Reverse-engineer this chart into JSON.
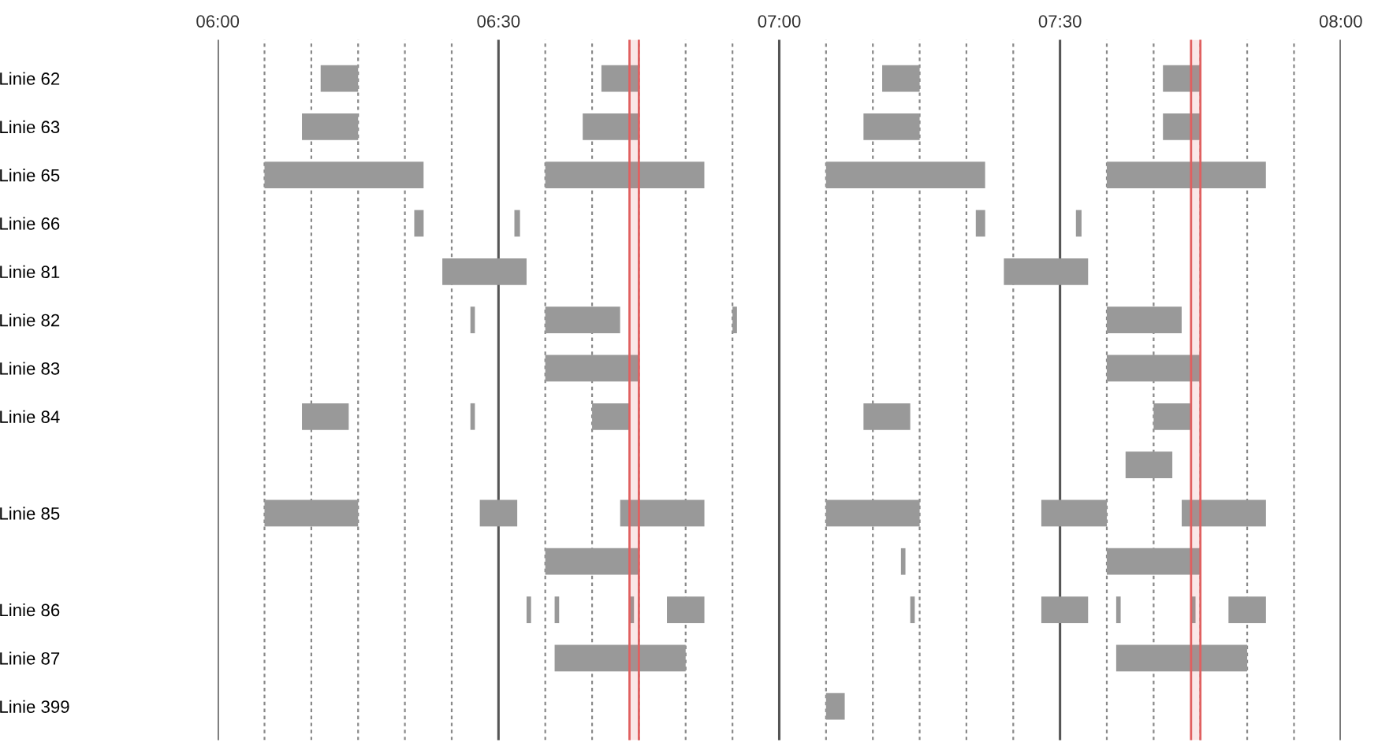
{
  "chart_data": {
    "type": "bar",
    "orientation": "horizontal",
    "categories": [
      "Linie 62",
      "Linie 63",
      "Linie 65",
      "Linie 66",
      "Linie 81",
      "Linie 82",
      "Linie 83",
      "Linie 84",
      null,
      "Linie 85",
      null,
      "Linie 86",
      "Linie 87",
      "Linie 399"
    ],
    "series": [
      {
        "color": "#999999",
        "base": [
          6.1833,
          6.15,
          6.0833,
          6.35,
          6.4,
          6.45,
          6.5833,
          6.15,
          7.6167,
          6.0833,
          6.5833,
          6.55,
          6.6,
          7.0833
        ],
        "values": [
          0.0667,
          0.1,
          0.2833,
          0.0167,
          0.15,
          0.008,
          0.1667,
          0.0833,
          0.0833,
          0.1667,
          0.1667,
          0.008,
          0.2333,
          0.0333
        ]
      },
      {
        "color": "#999999",
        "base": [
          6.6833,
          6.65,
          6.5833,
          6.5283,
          7.4,
          6.5833,
          7.5833,
          6.45,
          null,
          6.4667,
          7.2167,
          6.6,
          7.6,
          null
        ],
        "values": [
          0.0667,
          0.1,
          0.2833,
          0.01,
          0.15,
          0.1333,
          0.1667,
          0.008,
          null,
          0.0667,
          0.008,
          0.008,
          0.2333,
          null
        ]
      },
      {
        "color": "#999999",
        "base": [
          7.1833,
          7.15,
          7.0833,
          7.35,
          null,
          6.9167,
          null,
          6.6667,
          null,
          6.7167,
          7.5833,
          6.7333,
          null,
          null
        ],
        "values": [
          0.0667,
          0.1,
          0.2833,
          0.0167,
          null,
          0.008,
          null,
          0.0667,
          null,
          0.15,
          0.1667,
          0.008,
          null,
          null
        ]
      },
      {
        "color": "#999999",
        "base": [
          7.6833,
          7.6833,
          7.5833,
          7.5283,
          null,
          7.5833,
          null,
          7.15,
          null,
          7.0833,
          null,
          6.8,
          null,
          null
        ],
        "values": [
          0.0667,
          0.0667,
          0.2833,
          0.01,
          null,
          0.1333,
          null,
          0.0833,
          null,
          0.1667,
          null,
          0.0667,
          null,
          null
        ]
      },
      {
        "color": "#999999",
        "base": [
          null,
          null,
          null,
          null,
          null,
          null,
          null,
          7.6667,
          null,
          7.4667,
          null,
          7.2333,
          null,
          null
        ],
        "values": [
          null,
          null,
          null,
          null,
          null,
          null,
          null,
          0.0667,
          null,
          0.1167,
          null,
          0.008,
          null,
          null
        ]
      },
      {
        "color": "#999999",
        "base": [
          null,
          null,
          null,
          null,
          null,
          null,
          null,
          null,
          null,
          7.7167,
          null,
          7.4667,
          null,
          null
        ],
        "values": [
          null,
          null,
          null,
          null,
          null,
          null,
          null,
          null,
          null,
          0.15,
          null,
          0.0833,
          null,
          null
        ]
      },
      {
        "color": "#999999",
        "base": [
          null,
          null,
          null,
          null,
          null,
          null,
          null,
          null,
          null,
          null,
          null,
          7.6,
          null,
          null
        ],
        "values": [
          null,
          null,
          null,
          null,
          null,
          null,
          null,
          null,
          null,
          null,
          null,
          0.008,
          null,
          null
        ]
      },
      {
        "color": "#999999",
        "base": [
          null,
          null,
          null,
          null,
          null,
          null,
          null,
          null,
          null,
          null,
          null,
          7.7333,
          null,
          null
        ],
        "values": [
          null,
          null,
          null,
          null,
          null,
          null,
          null,
          null,
          null,
          null,
          null,
          0.008,
          null,
          null
        ]
      },
      {
        "color": "#999999",
        "base": [
          null,
          null,
          null,
          null,
          null,
          null,
          null,
          null,
          null,
          null,
          null,
          7.8,
          null,
          null
        ],
        "values": [
          null,
          null,
          null,
          null,
          null,
          null,
          null,
          null,
          null,
          null,
          null,
          0.0667,
          null,
          null
        ]
      }
    ],
    "xlim": [
      6,
      8
    ],
    "xticks": [
      {
        "value": 6,
        "label": "06:00"
      },
      {
        "value": 6.0833,
        "label": null
      },
      {
        "value": 6.1667,
        "label": null
      },
      {
        "value": 6.25,
        "label": null
      },
      {
        "value": 6.3333,
        "label": null
      },
      {
        "value": 6.4167,
        "label": null
      },
      {
        "value": 6.5,
        "label": "06:30"
      },
      {
        "value": 6.5833,
        "label": null
      },
      {
        "value": 6.6667,
        "label": null
      },
      {
        "value": 6.75,
        "label": null
      },
      {
        "value": 6.8333,
        "label": null
      },
      {
        "value": 6.9167,
        "label": null
      },
      {
        "value": 7,
        "label": "07:00"
      },
      {
        "value": 7.0833,
        "label": null
      },
      {
        "value": 7.1667,
        "label": null
      },
      {
        "value": 7.25,
        "label": null
      },
      {
        "value": 7.3333,
        "label": null
      },
      {
        "value": 7.4167,
        "label": null
      },
      {
        "value": 7.5,
        "label": "07:30"
      },
      {
        "value": 7.5833,
        "label": null
      },
      {
        "value": 7.6667,
        "label": null
      },
      {
        "value": 7.75,
        "label": null
      },
      {
        "value": 7.8333,
        "label": null
      },
      {
        "value": 7.9167,
        "label": null
      },
      {
        "value": 8,
        "label": "08:00"
      }
    ],
    "grid": "x",
    "bands": [
      {
        "axis": "x",
        "from": 6.7333,
        "to": 6.75,
        "color": "#e06060"
      },
      {
        "axis": "x",
        "from": 7.7333,
        "to": 7.75,
        "color": "#e06060"
      }
    ]
  }
}
